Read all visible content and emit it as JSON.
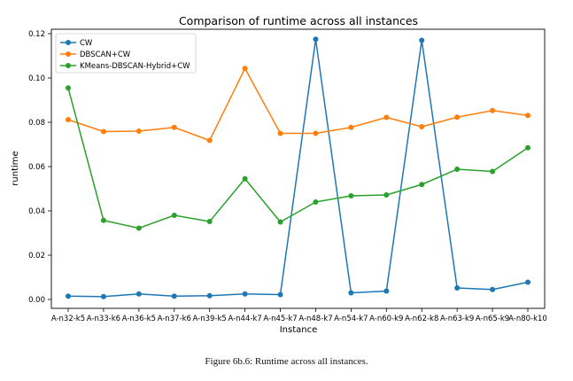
{
  "caption": "Figure 6b.6: Runtime across all instances.",
  "chart_data": {
    "type": "line",
    "title": "Comparison of runtime across all instances",
    "xlabel": "Instance",
    "ylabel": "runtime",
    "ylim": [
      -0.004,
      0.122
    ],
    "yticks": [
      0.0,
      0.02,
      0.04,
      0.06,
      0.08,
      0.1,
      0.12
    ],
    "ytick_labels": [
      "0.00",
      "0.02",
      "0.04",
      "0.06",
      "0.08",
      "0.10",
      "0.12"
    ],
    "grid": false,
    "legend_position": "upper-left",
    "categories": [
      "A-n32-k5",
      "A-n33-k6",
      "A-n36-k5",
      "A-n37-k6",
      "A-n39-k5",
      "A-n44-k7",
      "A-n45-k7",
      "A-n48-k7",
      "A-n54-k7",
      "A-n60-k9",
      "A-n62-k8",
      "A-n63-k9",
      "A-n65-k9",
      "A-n80-k10"
    ],
    "series": [
      {
        "name": "CW",
        "color": "#1f77b4",
        "values": [
          0.0015,
          0.0013,
          0.0025,
          0.0015,
          0.0017,
          0.0025,
          0.0022,
          0.1175,
          0.003,
          0.0038,
          0.117,
          0.0052,
          0.0045,
          0.0078
        ]
      },
      {
        "name": "DBSCAN+CW",
        "color": "#ff7f0e",
        "values": [
          0.0812,
          0.0758,
          0.076,
          0.0777,
          0.0718,
          0.1043,
          0.075,
          0.075,
          0.0777,
          0.0822,
          0.078,
          0.0823,
          0.0853,
          0.0831
        ]
      },
      {
        "name": "KMeans-DBSCAN-Hybrid+CW",
        "color": "#2ca02c",
        "values": [
          0.0955,
          0.0357,
          0.0322,
          0.038,
          0.0352,
          0.0545,
          0.035,
          0.044,
          0.0468,
          0.0472,
          0.0519,
          0.0588,
          0.0578,
          0.0685
        ]
      }
    ]
  }
}
